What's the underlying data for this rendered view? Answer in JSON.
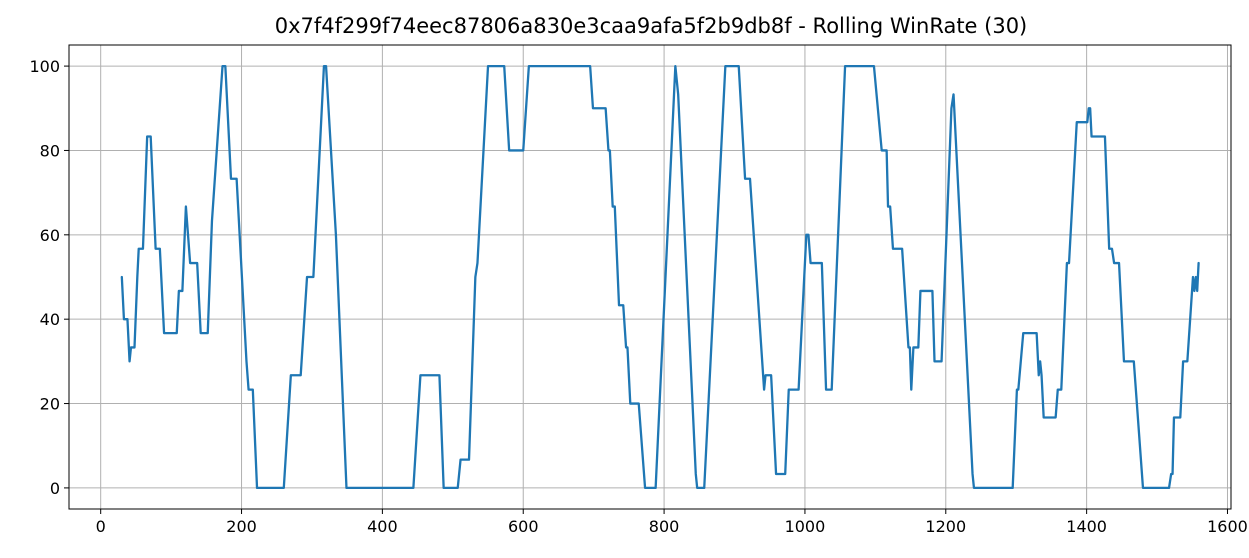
{
  "chart_data": {
    "type": "line",
    "title": "0x7f4f299f74eec87806a830e3caa9afa5f2b9db8f - Rolling WinRate (30)",
    "xlabel": "",
    "ylabel": "",
    "xlim": [
      -45,
      1605
    ],
    "ylim": [
      -5,
      105
    ],
    "xticks": [
      0,
      200,
      400,
      600,
      800,
      1000,
      1200,
      1400,
      1600
    ],
    "yticks": [
      0,
      20,
      40,
      60,
      80,
      100
    ],
    "grid": true,
    "legend": "none",
    "series": [
      {
        "name": "Rolling WinRate (30)",
        "color": "#1f77b4",
        "points": [
          [
            30,
            50
          ],
          [
            33,
            40
          ],
          [
            38,
            40
          ],
          [
            41,
            30
          ],
          [
            43,
            33.3
          ],
          [
            48,
            33.3
          ],
          [
            52,
            50
          ],
          [
            54,
            56.7
          ],
          [
            60,
            56.7
          ],
          [
            66,
            83.3
          ],
          [
            71,
            83.3
          ],
          [
            78,
            56.7
          ],
          [
            84,
            56.7
          ],
          [
            90,
            36.7
          ],
          [
            108,
            36.7
          ],
          [
            111,
            46.7
          ],
          [
            116,
            46.7
          ],
          [
            121,
            66.7
          ],
          [
            127,
            53.3
          ],
          [
            137,
            53.3
          ],
          [
            142,
            36.7
          ],
          [
            152,
            36.7
          ],
          [
            158,
            63.3
          ],
          [
            173,
            100
          ],
          [
            177,
            100
          ],
          [
            185,
            73.3
          ],
          [
            193,
            73.3
          ],
          [
            207,
            30
          ],
          [
            210,
            23.3
          ],
          [
            216,
            23.3
          ],
          [
            222,
            0
          ],
          [
            260,
            0
          ],
          [
            270,
            26.7
          ],
          [
            284,
            26.7
          ],
          [
            293,
            50
          ],
          [
            302,
            50
          ],
          [
            317,
            100
          ],
          [
            320,
            100
          ],
          [
            334,
            60
          ],
          [
            349,
            0
          ],
          [
            444,
            0
          ],
          [
            454,
            26.7
          ],
          [
            481,
            26.7
          ],
          [
            487,
            0
          ],
          [
            507,
            0
          ],
          [
            511,
            6.7
          ],
          [
            523,
            6.7
          ],
          [
            532,
            50
          ],
          [
            535,
            53.3
          ],
          [
            550,
            100
          ],
          [
            573,
            100
          ],
          [
            580,
            80
          ],
          [
            600,
            80
          ],
          [
            608,
            100
          ],
          [
            695,
            100
          ],
          [
            699,
            90
          ],
          [
            717,
            90
          ],
          [
            721,
            80
          ],
          [
            723,
            80
          ],
          [
            727,
            66.7
          ],
          [
            730,
            66.7
          ],
          [
            736,
            43.3
          ],
          [
            742,
            43.3
          ],
          [
            746,
            33.3
          ],
          [
            748,
            33.3
          ],
          [
            752,
            20
          ],
          [
            764,
            20
          ],
          [
            773,
            0
          ],
          [
            788,
            0
          ],
          [
            816,
            100
          ],
          [
            820,
            93.3
          ],
          [
            845,
            3.3
          ],
          [
            847,
            0
          ],
          [
            857,
            0
          ],
          [
            887,
            100
          ],
          [
            906,
            100
          ],
          [
            915,
            73.3
          ],
          [
            922,
            73.3
          ],
          [
            942,
            23.3
          ],
          [
            944,
            26.7
          ],
          [
            952,
            26.7
          ],
          [
            959,
            3.3
          ],
          [
            972,
            3.3
          ],
          [
            977,
            23.3
          ],
          [
            991,
            23.3
          ],
          [
            1002,
            60
          ],
          [
            1005,
            60
          ],
          [
            1008,
            53.3
          ],
          [
            1024,
            53.3
          ],
          [
            1030,
            23.3
          ],
          [
            1038,
            23.3
          ],
          [
            1057,
            100
          ],
          [
            1098,
            100
          ],
          [
            1109,
            80
          ],
          [
            1116,
            80
          ],
          [
            1118,
            66.7
          ],
          [
            1121,
            66.7
          ],
          [
            1125,
            56.7
          ],
          [
            1138,
            56.7
          ],
          [
            1147,
            33.3
          ],
          [
            1149,
            33.3
          ],
          [
            1151,
            23.3
          ],
          [
            1154,
            33.3
          ],
          [
            1161,
            33.3
          ],
          [
            1164,
            46.7
          ],
          [
            1181,
            46.7
          ],
          [
            1184,
            30
          ],
          [
            1194,
            30
          ],
          [
            1208,
            90
          ],
          [
            1211,
            93.3
          ],
          [
            1238,
            3.3
          ],
          [
            1240,
            0
          ],
          [
            1295,
            0
          ],
          [
            1301,
            23.3
          ],
          [
            1303,
            23.3
          ],
          [
            1310,
            36.7
          ],
          [
            1329,
            36.7
          ],
          [
            1332,
            26.7
          ],
          [
            1334,
            30
          ],
          [
            1336,
            26.7
          ],
          [
            1339,
            16.7
          ],
          [
            1356,
            16.7
          ],
          [
            1359,
            23.3
          ],
          [
            1364,
            23.3
          ],
          [
            1372,
            53.3
          ],
          [
            1375,
            53.3
          ],
          [
            1386,
            86.7
          ],
          [
            1401,
            86.7
          ],
          [
            1403,
            90
          ],
          [
            1405,
            90
          ],
          [
            1407,
            83.3
          ],
          [
            1426,
            83.3
          ],
          [
            1432,
            56.7
          ],
          [
            1436,
            56.7
          ],
          [
            1439,
            53.3
          ],
          [
            1446,
            53.3
          ],
          [
            1453,
            30
          ],
          [
            1467,
            30
          ],
          [
            1480,
            0
          ],
          [
            1517,
            0
          ],
          [
            1520,
            3.3
          ],
          [
            1522,
            3.3
          ],
          [
            1524,
            16.7
          ],
          [
            1533,
            16.7
          ],
          [
            1537,
            30
          ],
          [
            1543,
            30
          ],
          [
            1551,
            50
          ],
          [
            1553,
            46.7
          ],
          [
            1555,
            50
          ],
          [
            1557,
            46.7
          ],
          [
            1559,
            53.3
          ]
        ]
      }
    ]
  }
}
